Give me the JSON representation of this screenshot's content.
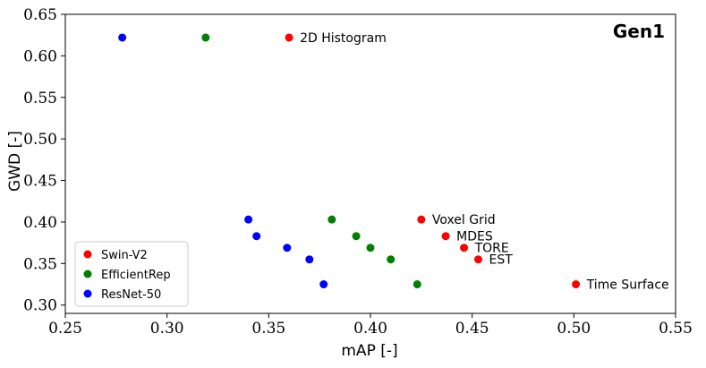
{
  "chart_data": {
    "type": "scatter",
    "title": "Gen1",
    "xlabel": "mAP [-]",
    "ylabel": "GWD [-]",
    "xlim": [
      0.25,
      0.55
    ],
    "ylim": [
      0.29,
      0.65
    ],
    "xticks": [
      "0.25",
      "0.30",
      "0.35",
      "0.40",
      "0.45",
      "0.50",
      "0.55"
    ],
    "yticks": [
      "0.30",
      "0.35",
      "0.40",
      "0.45",
      "0.50",
      "0.55",
      "0.60",
      "0.65"
    ],
    "grid": false,
    "legend_position": "bottom-left",
    "series": [
      {
        "name": "Swin-V2",
        "color": "#ff0000",
        "points": [
          {
            "x": 0.36,
            "y": 0.622,
            "label": "2D Histogram"
          },
          {
            "x": 0.425,
            "y": 0.403,
            "label": "Voxel Grid"
          },
          {
            "x": 0.437,
            "y": 0.383,
            "label": "MDES"
          },
          {
            "x": 0.446,
            "y": 0.369,
            "label": "TORE"
          },
          {
            "x": 0.453,
            "y": 0.355,
            "label": "EST"
          },
          {
            "x": 0.501,
            "y": 0.325,
            "label": "Time Surface"
          }
        ]
      },
      {
        "name": "EfficientRep",
        "color": "#008000",
        "points": [
          {
            "x": 0.319,
            "y": 0.622
          },
          {
            "x": 0.381,
            "y": 0.403
          },
          {
            "x": 0.393,
            "y": 0.383
          },
          {
            "x": 0.4,
            "y": 0.369
          },
          {
            "x": 0.41,
            "y": 0.355
          },
          {
            "x": 0.423,
            "y": 0.325
          }
        ]
      },
      {
        "name": "ResNet-50",
        "color": "#0000ff",
        "points": [
          {
            "x": 0.278,
            "y": 0.622
          },
          {
            "x": 0.34,
            "y": 0.403
          },
          {
            "x": 0.344,
            "y": 0.383
          },
          {
            "x": 0.359,
            "y": 0.369
          },
          {
            "x": 0.37,
            "y": 0.355
          },
          {
            "x": 0.377,
            "y": 0.325
          }
        ]
      }
    ]
  }
}
